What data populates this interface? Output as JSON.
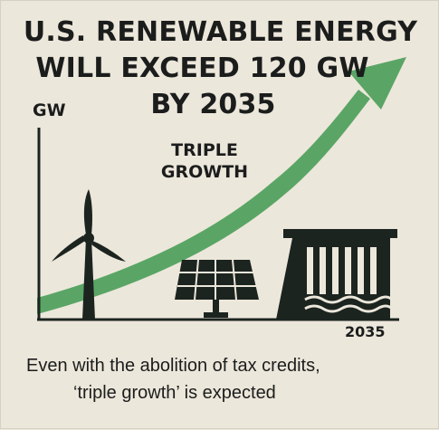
{
  "headline": {
    "line1": "U.S. RENEWABLE ENERGY",
    "line2": "WILL EXCEED 120 GW",
    "line3": "BY 2035"
  },
  "axis": {
    "unit": "GW",
    "year": "2035"
  },
  "annotation": "TRIPLE\nGROWTH",
  "caption": {
    "line1": "Even with the abolition of tax credits,",
    "line2": "‘triple growth’ is expected"
  },
  "colors": {
    "background": "#ece7db",
    "arrow": "#5aa565",
    "ink": "#1c2420"
  },
  "icons": [
    "wind-turbine-icon",
    "solar-panel-icon",
    "hydro-dam-icon",
    "growth-arrow-icon"
  ]
}
